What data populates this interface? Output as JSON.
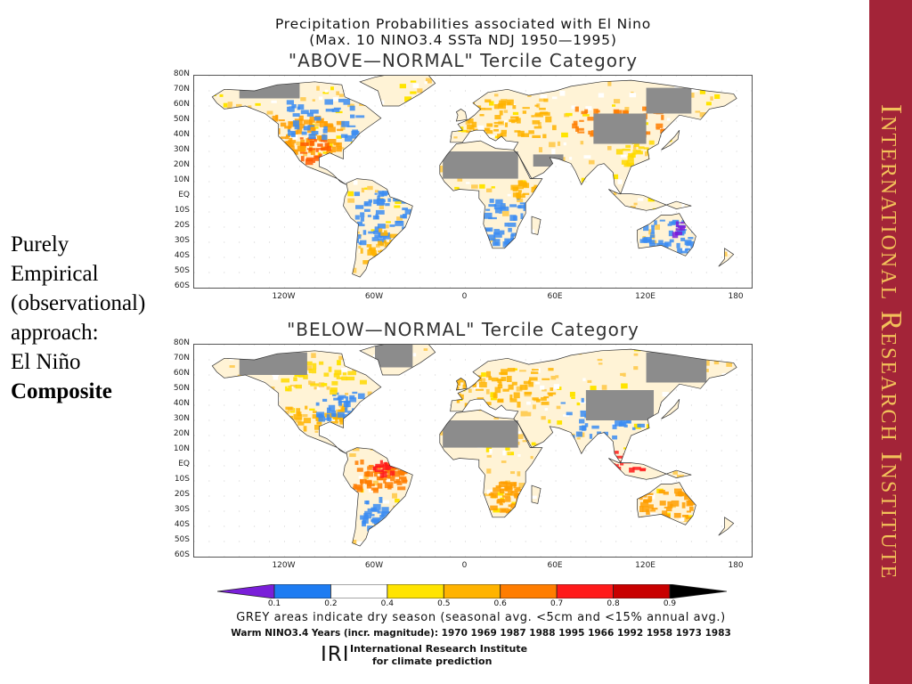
{
  "figure": {
    "title_line1": "Precipitation Probabilities associated with El Nino",
    "title_line2": "(Max. 10 NINO3.4 SSTa NDJ 1950—1995)"
  },
  "maps": [
    {
      "category_title": "\"ABOVE—NORMAL\" Tercile Category",
      "pattern": "above"
    },
    {
      "category_title": "\"BELOW—NORMAL\" Tercile Category",
      "pattern": "below"
    }
  ],
  "latitude_labels": [
    "80N",
    "70N",
    "60N",
    "50N",
    "40N",
    "30N",
    "20N",
    "10N",
    "EQ",
    "10S",
    "20S",
    "30S",
    "40S",
    "50S",
    "60S"
  ],
  "longitude_labels": [
    "120W",
    "60W",
    "0",
    "60E",
    "120E",
    "180"
  ],
  "left_text": {
    "line1": "Purely",
    "line2": "Empirical",
    "line3": "(observational)",
    "line4": "approach:",
    "line5": "El Niño",
    "line6": "Composite"
  },
  "colorbar": {
    "colors": [
      "#7a1fd9",
      "#1e7cf2",
      "#ffffff",
      "#ffe400",
      "#ffb300",
      "#ff7d00",
      "#ff1a1a",
      "#c80000",
      "#000000"
    ],
    "ticks": [
      "0.1",
      "0.2",
      "0.4",
      "0.5",
      "0.6",
      "0.7",
      "0.8",
      "0.9"
    ]
  },
  "notes": {
    "grey": "GREY areas indicate dry season (seasonal avg. <5cm and <15% annual avg.)",
    "years": "Warm NINO3.4 Years (incr. magnitude): 1970 1969 1987 1988 1995 1966 1992 1958 1973 1983"
  },
  "logo": {
    "mark": "IRI",
    "line1": "International Research Institute",
    "line2": "for climate prediction"
  },
  "banner": {
    "text": "International Research Institute",
    "background": "#a32438",
    "text_color": "#f2c15a"
  }
}
